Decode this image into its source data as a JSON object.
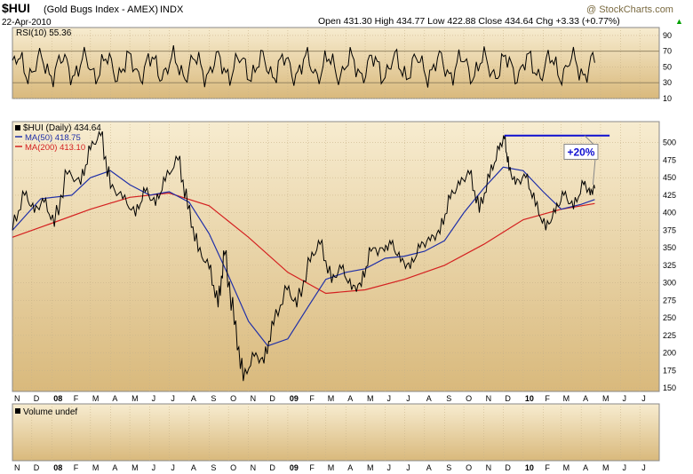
{
  "header": {
    "symbol": "$HUI",
    "name": "(Gold Bugs Index - AMEX)",
    "exchange": "INDX",
    "date": "22-Apr-2010",
    "copyright": "@ StockCharts.com",
    "quote": "Open 431.30  High 434.77  Low 422.88  Close 434.64  Chg +3.33 (+0.77%)",
    "quote_arrow": "▲"
  },
  "rsi_panel": {
    "label": "RSI(10) 55.36"
  },
  "price_panel": {
    "label": "$HUI (Daily) 434.64",
    "ma50_label": "MA(50) 418.75",
    "ma200_label": "MA(200) 413.10"
  },
  "volume_panel": {
    "label": "Volume undef"
  },
  "annotation": {
    "text": "+20%"
  },
  "colors": {
    "panel_top": "#f7ecd0",
    "panel_bottom": "#d9b97c",
    "price": "#000000",
    "ma50": "#1f2fa8",
    "ma200": "#d42020",
    "annotation_line": "#1010d0",
    "annotation_text": "#1010d0"
  },
  "chart_data": [
    {
      "type": "line",
      "title": "RSI(10) 55.36",
      "ylim": [
        10,
        100
      ],
      "y_ticks": [
        10,
        30,
        50,
        70,
        90
      ],
      "reference_lines": [
        30,
        70
      ],
      "series": [
        {
          "name": "RSI(10)",
          "last": 55.36
        }
      ],
      "x_range": [
        "2007-11-01",
        "2010-07-31"
      ]
    },
    {
      "type": "line",
      "title": "$HUI (Daily) 434.64",
      "ylim": [
        145,
        530
      ],
      "y_ticks": [
        150,
        175,
        200,
        225,
        250,
        275,
        300,
        325,
        350,
        375,
        400,
        425,
        450,
        475,
        500
      ],
      "x_range": [
        "2007-11-01",
        "2010-07-31"
      ],
      "x_tick_labels": [
        "N",
        "D",
        "08",
        "F",
        "M",
        "A",
        "M",
        "J",
        "J",
        "A",
        "S",
        "O",
        "N",
        "D",
        "09",
        "F",
        "M",
        "A",
        "M",
        "J",
        "J",
        "A",
        "S",
        "O",
        "N",
        "D",
        "10",
        "F",
        "M",
        "A",
        "M",
        "J",
        "J"
      ],
      "series": [
        {
          "name": "$HUI (Daily)",
          "last": 434.64,
          "points": [
            [
              "2007-11-01",
              375
            ],
            [
              "2007-11-20",
              425
            ],
            [
              "2007-12-05",
              400
            ],
            [
              "2007-12-20",
              415
            ],
            [
              "2008-01-05",
              380
            ],
            [
              "2008-01-25",
              455
            ],
            [
              "2008-02-15",
              440
            ],
            [
              "2008-03-01",
              490
            ],
            [
              "2008-03-17",
              510
            ],
            [
              "2008-04-01",
              435
            ],
            [
              "2008-04-20",
              420
            ],
            [
              "2008-05-10",
              395
            ],
            [
              "2008-05-25",
              430
            ],
            [
              "2008-06-10",
              410
            ],
            [
              "2008-06-25",
              445
            ],
            [
              "2008-07-15",
              475
            ],
            [
              "2008-07-30",
              405
            ],
            [
              "2008-08-15",
              345
            ],
            [
              "2008-09-01",
              320
            ],
            [
              "2008-09-15",
              265
            ],
            [
              "2008-09-25",
              340
            ],
            [
              "2008-10-10",
              240
            ],
            [
              "2008-10-24",
              160
            ],
            [
              "2008-11-10",
              195
            ],
            [
              "2008-11-25",
              185
            ],
            [
              "2008-12-10",
              240
            ],
            [
              "2008-12-31",
              290
            ],
            [
              "2009-01-15",
              265
            ],
            [
              "2009-02-05",
              330
            ],
            [
              "2009-02-20",
              355
            ],
            [
              "2009-03-10",
              300
            ],
            [
              "2009-03-25",
              320
            ],
            [
              "2009-04-10",
              290
            ],
            [
              "2009-04-25",
              295
            ],
            [
              "2009-05-10",
              345
            ],
            [
              "2009-05-31",
              345
            ],
            [
              "2009-06-10",
              355
            ],
            [
              "2009-06-25",
              330
            ],
            [
              "2009-07-10",
              320
            ],
            [
              "2009-07-25",
              350
            ],
            [
              "2009-08-10",
              360
            ],
            [
              "2009-08-25",
              370
            ],
            [
              "2009-09-10",
              420
            ],
            [
              "2009-09-25",
              440
            ],
            [
              "2009-10-10",
              455
            ],
            [
              "2009-10-25",
              400
            ],
            [
              "2009-11-10",
              450
            ],
            [
              "2009-11-25",
              490
            ],
            [
              "2009-12-03",
              505
            ],
            [
              "2009-12-10",
              460
            ],
            [
              "2009-12-20",
              440
            ],
            [
              "2010-01-05",
              450
            ],
            [
              "2010-01-20",
              410
            ],
            [
              "2010-02-05",
              375
            ],
            [
              "2010-02-20",
              400
            ],
            [
              "2010-03-05",
              425
            ],
            [
              "2010-03-20",
              405
            ],
            [
              "2010-04-05",
              440
            ],
            [
              "2010-04-15",
              425
            ],
            [
              "2010-04-22",
              434.64
            ]
          ]
        },
        {
          "name": "MA(50)",
          "last": 418.75,
          "points": [
            [
              "2007-11-01",
              375
            ],
            [
              "2007-12-15",
              420
            ],
            [
              "2008-02-01",
              425
            ],
            [
              "2008-03-01",
              450
            ],
            [
              "2008-04-01",
              460
            ],
            [
              "2008-05-01",
              440
            ],
            [
              "2008-06-01",
              425
            ],
            [
              "2008-07-01",
              430
            ],
            [
              "2008-08-01",
              415
            ],
            [
              "2008-09-01",
              370
            ],
            [
              "2008-10-01",
              310
            ],
            [
              "2008-11-01",
              245
            ],
            [
              "2008-12-01",
              210
            ],
            [
              "2009-01-01",
              220
            ],
            [
              "2009-02-01",
              265
            ],
            [
              "2009-03-01",
              305
            ],
            [
              "2009-04-01",
              315
            ],
            [
              "2009-05-01",
              320
            ],
            [
              "2009-06-01",
              335
            ],
            [
              "2009-07-01",
              338
            ],
            [
              "2009-08-01",
              345
            ],
            [
              "2009-09-01",
              360
            ],
            [
              "2009-10-01",
              400
            ],
            [
              "2009-11-01",
              435
            ],
            [
              "2009-12-01",
              465
            ],
            [
              "2010-01-01",
              460
            ],
            [
              "2010-02-01",
              430
            ],
            [
              "2010-03-01",
              405
            ],
            [
              "2010-04-01",
              412
            ],
            [
              "2010-04-22",
              418.75
            ]
          ]
        },
        {
          "name": "MA(200)",
          "last": 413.1,
          "points": [
            [
              "2007-11-01",
              365
            ],
            [
              "2008-01-01",
              385
            ],
            [
              "2008-03-01",
              405
            ],
            [
              "2008-05-01",
              422
            ],
            [
              "2008-07-01",
              428
            ],
            [
              "2008-09-01",
              410
            ],
            [
              "2008-11-01",
              365
            ],
            [
              "2009-01-01",
              315
            ],
            [
              "2009-03-01",
              285
            ],
            [
              "2009-05-01",
              290
            ],
            [
              "2009-07-01",
              305
            ],
            [
              "2009-09-01",
              325
            ],
            [
              "2009-11-01",
              355
            ],
            [
              "2010-01-01",
              390
            ],
            [
              "2010-03-01",
              405
            ],
            [
              "2010-04-22",
              413.1
            ]
          ]
        }
      ],
      "annotations": [
        {
          "type": "hline",
          "y": 510,
          "x_from": "2009-12-03",
          "x_to": "2010-05-15"
        },
        {
          "type": "label",
          "text": "+20%",
          "x": "2010-04-20",
          "y": 480
        }
      ]
    },
    {
      "type": "bar",
      "title": "Volume undef",
      "x_range": [
        "2007-11-01",
        "2010-07-31"
      ],
      "x_tick_labels": [
        "N",
        "D",
        "08",
        "F",
        "M",
        "A",
        "M",
        "J",
        "J",
        "A",
        "S",
        "O",
        "N",
        "D",
        "09",
        "F",
        "M",
        "A",
        "M",
        "J",
        "J",
        "A",
        "S",
        "O",
        "N",
        "D",
        "10",
        "F",
        "M",
        "A",
        "M",
        "J",
        "J"
      ],
      "values": []
    }
  ]
}
